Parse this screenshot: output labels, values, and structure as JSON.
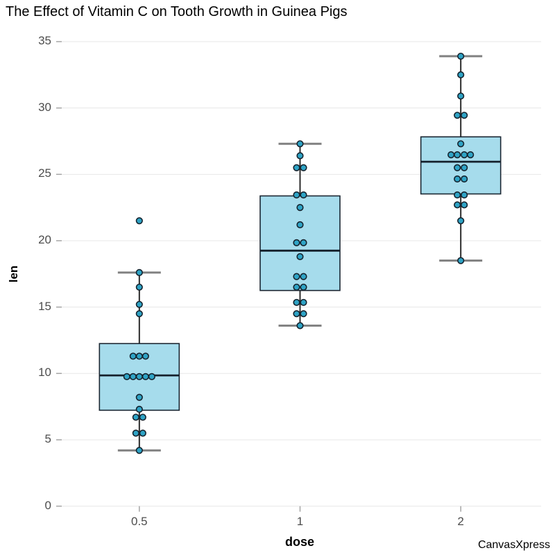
{
  "chart_data": {
    "type": "boxplot",
    "title": "The Effect of Vitamin C on Tooth Growth in Guinea Pigs",
    "xlabel": "dose",
    "ylabel": "len",
    "watermark": "CanvasXpress",
    "categories": [
      "0.5",
      "1",
      "2"
    ],
    "ylim": [
      0,
      35
    ],
    "yticks": [
      0,
      5,
      10,
      15,
      20,
      25,
      30,
      35
    ],
    "grid": true,
    "legend": "none",
    "groups": [
      {
        "category": "0.5",
        "n": 20,
        "stats": {
          "whisker_low": 4.2,
          "q1": 7.225,
          "median": 9.85,
          "q3": 12.25,
          "whisker_high": 17.6
        },
        "values": [
          4.2,
          11.5,
          7.3,
          5.8,
          6.4,
          10.0,
          11.2,
          11.2,
          5.2,
          7.0,
          15.2,
          21.5,
          17.6,
          9.7,
          14.5,
          10.0,
          8.2,
          9.4,
          16.5,
          9.7
        ],
        "point_clusters": [
          {
            "values": [
              21.5
            ],
            "dx": [
              0
            ]
          },
          {
            "values": [
              17.6
            ],
            "dx": [
              0
            ]
          },
          {
            "values": [
              16.5
            ],
            "dx": [
              0
            ]
          },
          {
            "values": [
              15.2
            ],
            "dx": [
              0
            ]
          },
          {
            "values": [
              14.5
            ],
            "dx": [
              0
            ]
          },
          {
            "values": [
              11.2,
              11.2,
              11.5
            ],
            "dx": [
              -9,
              0,
              9
            ]
          },
          {
            "values": [
              9.4,
              9.7,
              9.7,
              10.0,
              10.0
            ],
            "dx": [
              -18,
              -9,
              0,
              9,
              18
            ]
          },
          {
            "values": [
              8.2
            ],
            "dx": [
              0
            ]
          },
          {
            "values": [
              7.3
            ],
            "dx": [
              0
            ]
          },
          {
            "values": [
              7.0,
              6.4
            ],
            "dx": [
              -5,
              5
            ]
          },
          {
            "values": [
              5.8,
              5.2
            ],
            "dx": [
              -5,
              5
            ]
          },
          {
            "values": [
              4.2
            ],
            "dx": [
              0
            ]
          }
        ]
      },
      {
        "category": "1",
        "n": 20,
        "stats": {
          "whisker_low": 13.6,
          "q1": 16.25,
          "median": 19.25,
          "q3": 23.375,
          "whisker_high": 27.3
        },
        "values": [
          16.5,
          16.5,
          15.2,
          17.3,
          22.5,
          17.3,
          13.6,
          14.5,
          18.8,
          15.5,
          19.7,
          23.3,
          23.6,
          26.4,
          20.0,
          25.2,
          25.8,
          21.2,
          14.5,
          27.3
        ],
        "point_clusters": [
          {
            "values": [
              27.3
            ],
            "dx": [
              0
            ]
          },
          {
            "values": [
              26.4
            ],
            "dx": [
              0
            ]
          },
          {
            "values": [
              25.8,
              25.2
            ],
            "dx": [
              -5,
              5
            ]
          },
          {
            "values": [
              23.6,
              23.3
            ],
            "dx": [
              -5,
              5
            ]
          },
          {
            "values": [
              22.5
            ],
            "dx": [
              0
            ]
          },
          {
            "values": [
              21.2
            ],
            "dx": [
              0
            ]
          },
          {
            "values": [
              20.0,
              19.7
            ],
            "dx": [
              -5,
              5
            ]
          },
          {
            "values": [
              18.8
            ],
            "dx": [
              0
            ]
          },
          {
            "values": [
              17.3,
              17.3
            ],
            "dx": [
              -5,
              5
            ]
          },
          {
            "values": [
              16.5,
              16.5
            ],
            "dx": [
              -5,
              5
            ]
          },
          {
            "values": [
              15.5,
              15.2
            ],
            "dx": [
              -5,
              5
            ]
          },
          {
            "values": [
              14.5,
              14.5
            ],
            "dx": [
              -5,
              5
            ]
          },
          {
            "values": [
              13.6
            ],
            "dx": [
              0
            ]
          }
        ]
      },
      {
        "category": "2",
        "n": 20,
        "stats": {
          "whisker_low": 18.5,
          "q1": 23.525,
          "median": 25.95,
          "q3": 27.825,
          "whisker_high": 33.9
        },
        "values": [
          23.6,
          18.5,
          33.9,
          25.5,
          26.4,
          32.5,
          26.7,
          21.5,
          23.3,
          29.5,
          25.5,
          26.4,
          22.4,
          24.5,
          24.8,
          30.9,
          26.4,
          27.3,
          29.4,
          23.0
        ],
        "point_clusters": [
          {
            "values": [
              33.9
            ],
            "dx": [
              0
            ]
          },
          {
            "values": [
              32.5
            ],
            "dx": [
              0
            ]
          },
          {
            "values": [
              30.9
            ],
            "dx": [
              0
            ]
          },
          {
            "values": [
              29.5,
              29.4
            ],
            "dx": [
              -5,
              5
            ]
          },
          {
            "values": [
              27.3
            ],
            "dx": [
              0
            ]
          },
          {
            "values": [
              26.7,
              26.4,
              26.4,
              26.4
            ],
            "dx": [
              -14,
              -5,
              5,
              14
            ]
          },
          {
            "values": [
              25.5,
              25.5
            ],
            "dx": [
              -5,
              5
            ]
          },
          {
            "values": [
              24.8,
              24.5
            ],
            "dx": [
              -5,
              5
            ]
          },
          {
            "values": [
              23.6,
              23.3
            ],
            "dx": [
              -5,
              5
            ]
          },
          {
            "values": [
              23.0,
              22.4
            ],
            "dx": [
              -5,
              5
            ]
          },
          {
            "values": [
              21.5
            ],
            "dx": [
              0
            ]
          },
          {
            "values": [
              18.5
            ],
            "dx": [
              0
            ]
          }
        ]
      }
    ]
  },
  "colors": {
    "background": "#FFFFFF",
    "box_fill": "#A6DCEC",
    "box_border": "#1B2733",
    "median": "#14202B",
    "whisker_stem": "#2B2B2B",
    "whisker_cap": "#808080",
    "point_fill": "#2EA3C5",
    "point_border": "#15232E",
    "gridline": "#E7E7E7",
    "tick": "#A5A5A5",
    "tick_label": "#4D4D4D",
    "title_color": "#000000"
  }
}
